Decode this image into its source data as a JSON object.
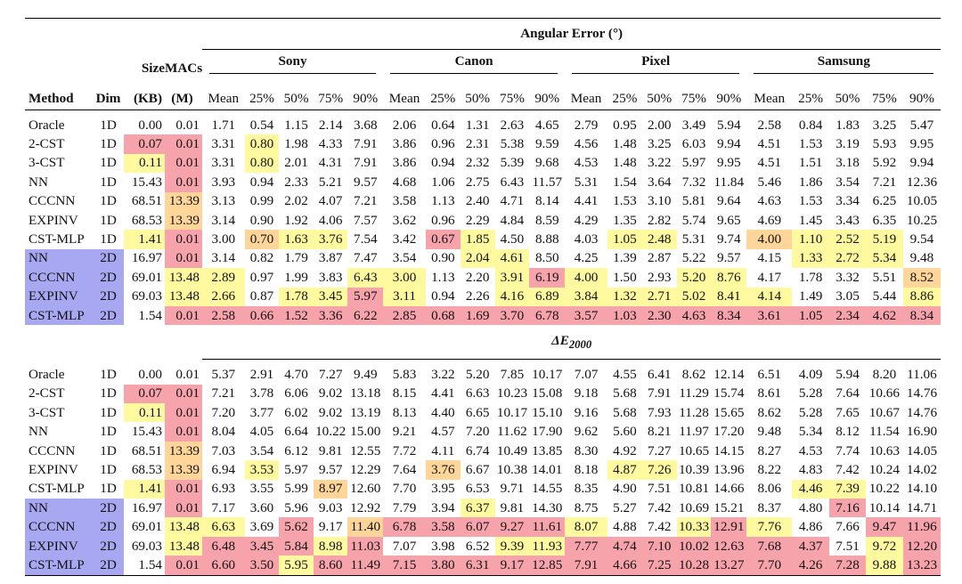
{
  "headers": {
    "method": "Method",
    "dim": "Dim",
    "size_top": "Size",
    "size_bottom": "(KB)",
    "macs_top": "MACs",
    "macs_bottom": "(M)",
    "stats": [
      "Mean",
      "25%",
      "50%",
      "75%",
      "90%"
    ]
  },
  "cameras": [
    "Sony",
    "Canon",
    "Pixel",
    "Samsung"
  ],
  "sections": [
    {
      "title": "Angular Error (°)",
      "is_delta": false,
      "rows": [
        {
          "method": "Oracle",
          "dim": "1D",
          "size": "0.00",
          "macs": "0.01",
          "values": [
            "1.71",
            "0.54",
            "1.15",
            "2.14",
            "3.68",
            "2.06",
            "0.64",
            "1.31",
            "2.63",
            "4.65",
            "2.79",
            "0.95",
            "2.00",
            "3.49",
            "5.94",
            "2.58",
            "0.84",
            "1.83",
            "3.25",
            "5.47"
          ]
        },
        {
          "method": "2-CST",
          "dim": "1D",
          "size": "0.07",
          "macs": "0.01",
          "values": [
            "3.31",
            "0.80",
            "1.98",
            "4.33",
            "7.91",
            "3.86",
            "0.96",
            "2.31",
            "5.38",
            "9.59",
            "4.56",
            "1.48",
            "3.25",
            "6.03",
            "9.94",
            "4.51",
            "1.53",
            "3.19",
            "5.93",
            "9.95"
          ]
        },
        {
          "method": "3-CST",
          "dim": "1D",
          "size": "0.11",
          "macs": "0.01",
          "values": [
            "3.31",
            "0.80",
            "2.01",
            "4.31",
            "7.91",
            "3.86",
            "0.94",
            "2.32",
            "5.39",
            "9.68",
            "4.53",
            "1.48",
            "3.22",
            "5.97",
            "9.95",
            "4.51",
            "1.51",
            "3.18",
            "5.92",
            "9.94"
          ]
        },
        {
          "method": "NN",
          "dim": "1D",
          "size": "15.43",
          "macs": "0.01",
          "values": [
            "3.93",
            "0.94",
            "2.33",
            "5.21",
            "9.57",
            "4.68",
            "1.06",
            "2.75",
            "6.43",
            "11.57",
            "5.31",
            "1.54",
            "3.64",
            "7.32",
            "11.84",
            "5.46",
            "1.86",
            "3.54",
            "7.21",
            "12.36"
          ]
        },
        {
          "method": "CCCNN",
          "dim": "1D",
          "size": "68.51",
          "macs": "13.39",
          "values": [
            "3.13",
            "0.99",
            "2.02",
            "4.07",
            "7.21",
            "3.58",
            "1.13",
            "2.40",
            "4.71",
            "8.14",
            "4.41",
            "1.53",
            "3.10",
            "5.81",
            "9.64",
            "4.63",
            "1.53",
            "3.34",
            "6.25",
            "10.05"
          ]
        },
        {
          "method": "EXPINV",
          "dim": "1D",
          "size": "68.53",
          "macs": "13.39",
          "values": [
            "3.14",
            "0.90",
            "1.92",
            "4.06",
            "7.57",
            "3.62",
            "0.96",
            "2.29",
            "4.84",
            "8.59",
            "4.29",
            "1.35",
            "2.82",
            "5.74",
            "9.65",
            "4.69",
            "1.45",
            "3.43",
            "6.35",
            "10.25"
          ]
        },
        {
          "method": "CST-MLP",
          "dim": "1D",
          "size": "1.41",
          "macs": "0.01",
          "values": [
            "3.00",
            "0.70",
            "1.63",
            "3.76",
            "7.54",
            "3.42",
            "0.67",
            "1.85",
            "4.50",
            "8.88",
            "4.03",
            "1.05",
            "2.48",
            "5.31",
            "9.74",
            "4.00",
            "1.10",
            "2.52",
            "5.19",
            "9.54"
          ]
        },
        {
          "method": "NN",
          "dim": "2D",
          "size": "16.97",
          "macs": "0.01",
          "values": [
            "3.14",
            "0.82",
            "1.79",
            "3.87",
            "7.47",
            "3.54",
            "0.90",
            "2.04",
            "4.61",
            "8.50",
            "4.25",
            "1.39",
            "2.87",
            "5.22",
            "9.57",
            "4.15",
            "1.33",
            "2.72",
            "5.34",
            "9.48"
          ]
        },
        {
          "method": "CCCNN",
          "dim": "2D",
          "size": "69.01",
          "macs": "13.48",
          "values": [
            "2.89",
            "0.97",
            "1.99",
            "3.83",
            "6.43",
            "3.00",
            "1.13",
            "2.20",
            "3.91",
            "6.19",
            "4.00",
            "1.50",
            "2.93",
            "5.20",
            "8.76",
            "4.17",
            "1.78",
            "3.32",
            "5.51",
            "8.52"
          ]
        },
        {
          "method": "EXPINV",
          "dim": "2D",
          "size": "69.03",
          "macs": "13.48",
          "values": [
            "2.66",
            "0.87",
            "1.78",
            "3.45",
            "5.97",
            "3.11",
            "0.94",
            "2.26",
            "4.16",
            "6.89",
            "3.84",
            "1.32",
            "2.71",
            "5.02",
            "8.41",
            "4.14",
            "1.49",
            "3.05",
            "5.44",
            "8.86"
          ]
        },
        {
          "method": "CST-MLP",
          "dim": "2D",
          "size": "1.54",
          "macs": "0.01",
          "values": [
            "2.58",
            "0.66",
            "1.52",
            "3.36",
            "6.22",
            "2.85",
            "0.68",
            "1.69",
            "3.70",
            "6.78",
            "3.57",
            "1.03",
            "2.30",
            "4.63",
            "8.34",
            "3.61",
            "1.05",
            "2.34",
            "4.62",
            "8.34"
          ]
        }
      ]
    },
    {
      "title": "ΔE",
      "title_sub": "2000",
      "is_delta": true,
      "rows": [
        {
          "method": "Oracle",
          "dim": "1D",
          "size": "0.00",
          "macs": "0.01",
          "values": [
            "5.37",
            "2.91",
            "4.70",
            "7.27",
            "9.49",
            "5.83",
            "3.22",
            "5.20",
            "7.85",
            "10.17",
            "7.07",
            "4.55",
            "6.41",
            "8.62",
            "12.14",
            "6.51",
            "4.09",
            "5.94",
            "8.20",
            "11.06"
          ]
        },
        {
          "method": "2-CST",
          "dim": "1D",
          "size": "0.07",
          "macs": "0.01",
          "values": [
            "7.21",
            "3.78",
            "6.06",
            "9.02",
            "13.18",
            "8.15",
            "4.41",
            "6.63",
            "10.23",
            "15.08",
            "9.18",
            "5.68",
            "7.91",
            "11.29",
            "15.74",
            "8.61",
            "5.28",
            "7.64",
            "10.66",
            "14.76"
          ]
        },
        {
          "method": "3-CST",
          "dim": "1D",
          "size": "0.11",
          "macs": "0.01",
          "values": [
            "7.20",
            "3.77",
            "6.02",
            "9.02",
            "13.19",
            "8.13",
            "4.40",
            "6.65",
            "10.17",
            "15.10",
            "9.16",
            "5.68",
            "7.93",
            "11.28",
            "15.65",
            "8.62",
            "5.28",
            "7.65",
            "10.67",
            "14.76"
          ]
        },
        {
          "method": "NN",
          "dim": "1D",
          "size": "15.43",
          "macs": "0.01",
          "values": [
            "8.04",
            "4.05",
            "6.64",
            "10.22",
            "15.00",
            "9.21",
            "4.57",
            "7.20",
            "11.62",
            "17.90",
            "9.62",
            "5.60",
            "8.21",
            "11.97",
            "17.20",
            "9.48",
            "5.34",
            "8.12",
            "11.54",
            "16.90"
          ]
        },
        {
          "method": "CCCNN",
          "dim": "1D",
          "size": "68.51",
          "macs": "13.39",
          "values": [
            "7.03",
            "3.54",
            "6.12",
            "9.81",
            "12.55",
            "7.72",
            "4.11",
            "6.74",
            "10.49",
            "13.85",
            "8.30",
            "4.92",
            "7.27",
            "10.65",
            "14.15",
            "8.27",
            "4.53",
            "7.74",
            "10.63",
            "14.05"
          ]
        },
        {
          "method": "EXPINV",
          "dim": "1D",
          "size": "68.53",
          "macs": "13.39",
          "values": [
            "6.94",
            "3.53",
            "5.97",
            "9.57",
            "12.29",
            "7.64",
            "3.76",
            "6.67",
            "10.38",
            "14.01",
            "8.18",
            "4.87",
            "7.26",
            "10.39",
            "13.96",
            "8.22",
            "4.83",
            "7.42",
            "10.24",
            "14.02"
          ]
        },
        {
          "method": "CST-MLP",
          "dim": "1D",
          "size": "1.41",
          "macs": "0.01",
          "values": [
            "6.93",
            "3.55",
            "5.99",
            "8.97",
            "12.60",
            "7.70",
            "3.95",
            "6.53",
            "9.71",
            "14.55",
            "8.35",
            "4.90",
            "7.51",
            "10.81",
            "14.66",
            "8.06",
            "4.46",
            "7.39",
            "10.22",
            "14.10"
          ]
        },
        {
          "method": "NN",
          "dim": "2D",
          "size": "16.97",
          "macs": "0.01",
          "values": [
            "7.17",
            "3.60",
            "5.96",
            "9.03",
            "12.92",
            "7.79",
            "3.94",
            "6.37",
            "9.81",
            "14.30",
            "8.75",
            "5.27",
            "7.42",
            "10.69",
            "15.21",
            "8.37",
            "4.80",
            "7.16",
            "10.14",
            "14.71"
          ]
        },
        {
          "method": "CCCNN",
          "dim": "2D",
          "size": "69.01",
          "macs": "13.48",
          "values": [
            "6.63",
            "3.69",
            "5.62",
            "9.17",
            "11.40",
            "6.78",
            "3.58",
            "6.07",
            "9.27",
            "11.61",
            "8.07",
            "4.88",
            "7.42",
            "10.33",
            "12.91",
            "7.76",
            "4.86",
            "7.66",
            "9.47",
            "11.96"
          ]
        },
        {
          "method": "EXPINV",
          "dim": "2D",
          "size": "69.03",
          "macs": "13.48",
          "values": [
            "6.48",
            "3.45",
            "5.84",
            "8.98",
            "11.03",
            "7.07",
            "3.98",
            "6.52",
            "9.39",
            "11.93",
            "7.77",
            "4.74",
            "7.10",
            "10.02",
            "12.63",
            "7.68",
            "4.37",
            "7.51",
            "9.72",
            "12.20"
          ]
        },
        {
          "method": "CST-MLP",
          "dim": "2D",
          "size": "1.54",
          "macs": "0.01",
          "values": [
            "6.60",
            "3.50",
            "5.95",
            "8.60",
            "11.49",
            "7.15",
            "3.80",
            "6.31",
            "9.17",
            "12.85",
            "7.91",
            "4.66",
            "7.25",
            "10.28",
            "13.27",
            "7.70",
            "4.26",
            "7.28",
            "9.88",
            "13.23"
          ]
        }
      ]
    }
  ],
  "colors": {
    "yellow": "#fffaa0",
    "orange": "#ffd59a",
    "red": "#f7a3ab",
    "blue": "#a8a7f2"
  }
}
